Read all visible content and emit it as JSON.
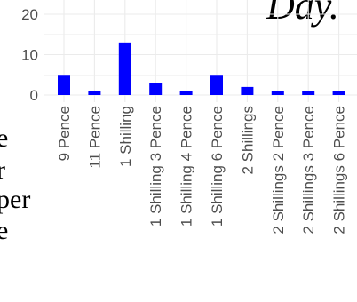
{
  "background_text": {
    "top": "Day.",
    "left_lines": [
      "e",
      "r",
      "per",
      "e"
    ]
  },
  "chart_data": {
    "type": "bar",
    "categories": [
      "9 Pence",
      "11 Pence",
      "1 Shilling",
      "1 Shilling 3 Pence",
      "1 Shilling 4 Pence",
      "1 Shilling 6 Pence",
      "2 Shillings",
      "2 Shillings 2 Pence",
      "2 Shillings 3 Pence",
      "2 Shillings 6 Pence"
    ],
    "values": [
      5,
      1,
      13,
      3,
      1,
      5,
      2,
      1,
      1,
      1
    ],
    "yticks": [
      0,
      10,
      20
    ],
    "ylim": [
      0,
      20
    ],
    "title": "",
    "xlabel": "",
    "ylabel": "",
    "grid": true,
    "colors": {
      "bar": "#0000ff",
      "grid": "#ebebeb",
      "tick_text": "#4d4d4d"
    }
  }
}
